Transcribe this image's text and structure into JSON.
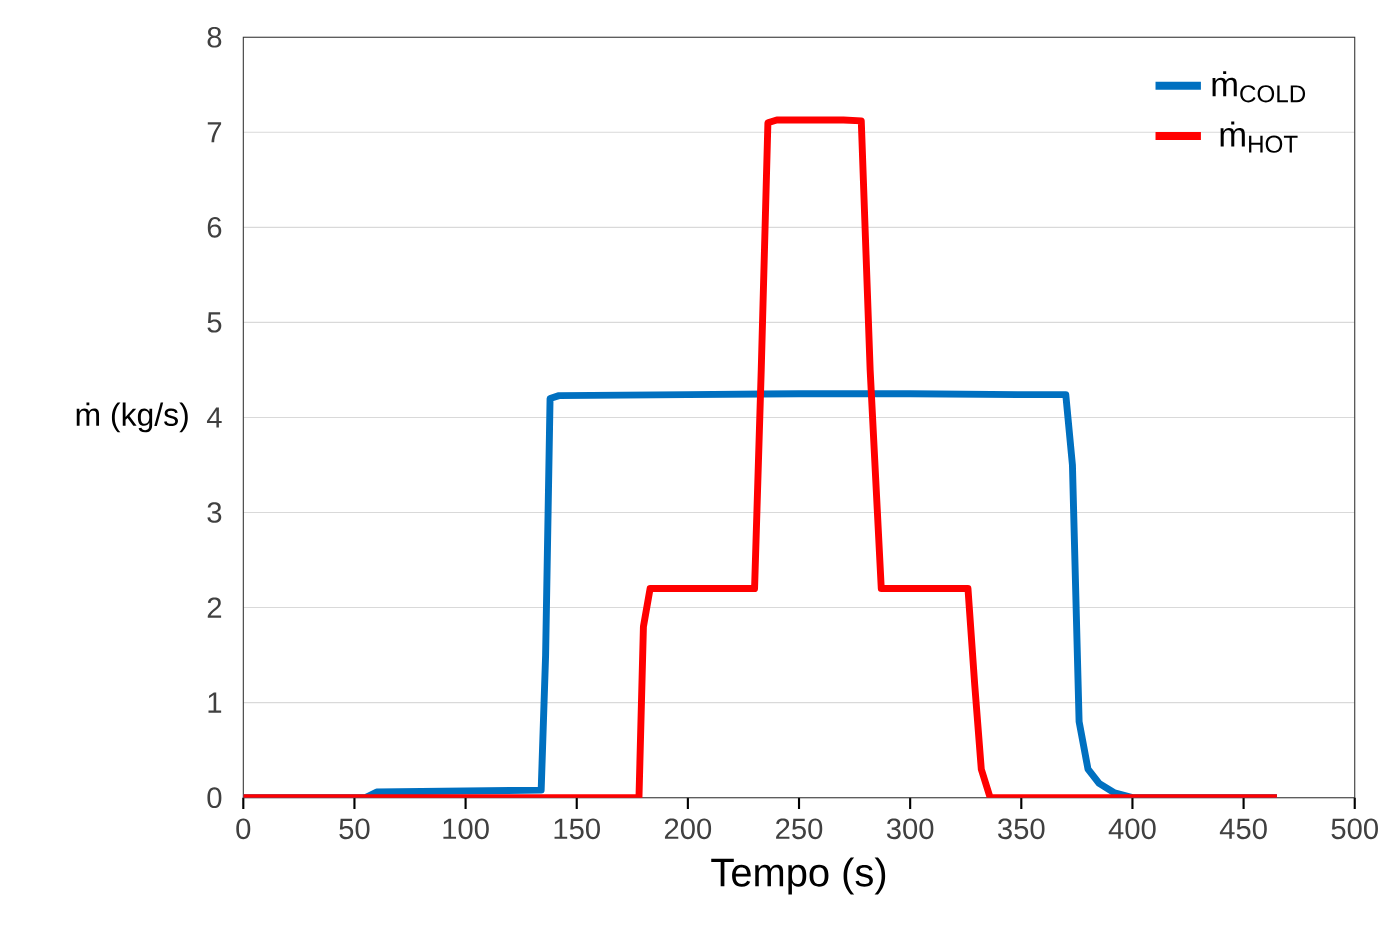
{
  "chart_data": {
    "type": "line",
    "xlabel": "Tempo (s)",
    "ylabel": "ṁ (kg/s)",
    "xlim": [
      0,
      500
    ],
    "ylim": [
      0,
      8
    ],
    "xticks": [
      0,
      50,
      100,
      150,
      200,
      250,
      300,
      350,
      400,
      450,
      500
    ],
    "yticks": [
      0,
      1,
      2,
      3,
      4,
      5,
      6,
      7,
      8
    ],
    "grid": "y",
    "legend": "top right",
    "marker": "none",
    "line_style": "solid",
    "series": [
      {
        "name": "ṁ$_{COLD}$",
        "color": "#0070c0",
        "x": [
          0,
          55,
          60,
          100,
          134,
          136,
          138,
          142,
          200,
          250,
          300,
          350,
          370,
          373,
          376,
          380,
          385,
          392,
          400,
          465
        ],
        "values": [
          0,
          0,
          0.06,
          0.07,
          0.08,
          1.5,
          4.2,
          4.23,
          4.24,
          4.25,
          4.25,
          4.24,
          4.24,
          3.5,
          0.8,
          0.3,
          0.15,
          0.05,
          0,
          0
        ]
      },
      {
        "name": "ṁ$_{HOT}$",
        "color": "#ff0000",
        "x": [
          0,
          178,
          180,
          183,
          230,
          233,
          236,
          240,
          270,
          278,
          282,
          287,
          300,
          326,
          329,
          332,
          336,
          465
        ],
        "values": [
          0,
          0,
          1.8,
          2.2,
          2.2,
          4.5,
          7.1,
          7.13,
          7.13,
          7.12,
          4.5,
          2.2,
          2.2,
          2.2,
          1.2,
          0.3,
          0,
          0
        ]
      }
    ]
  }
}
